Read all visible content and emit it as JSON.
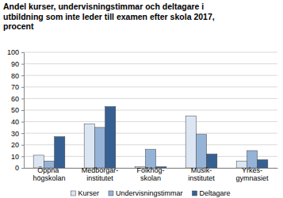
{
  "chart_data": {
    "type": "bar",
    "title": "Andel kurser, undervisningstimmar och deltagare i utbildning som inte leder till examen efter skola 2017, procent",
    "categories": [
      "Öppna högskolan",
      "Medborgar-institutet",
      "Folkhög-skolan",
      "Musik-institutet",
      "Yrkes-gymnasiet"
    ],
    "series": [
      {
        "name": "Kurser",
        "color": "#dce6f2",
        "values": [
          11,
          38,
          1,
          45,
          6
        ]
      },
      {
        "name": "Undervisningstimmar",
        "color": "#95b3d7",
        "values": [
          6,
          35,
          16,
          29,
          15
        ]
      },
      {
        "name": "Deltagare",
        "color": "#366092",
        "values": [
          27,
          53,
          1,
          12,
          7
        ]
      }
    ],
    "ylim": [
      0,
      100
    ],
    "yticks": [
      0,
      10,
      20,
      30,
      40,
      50,
      60,
      70,
      80,
      90,
      100
    ],
    "grid": true,
    "legend": "bottom"
  }
}
